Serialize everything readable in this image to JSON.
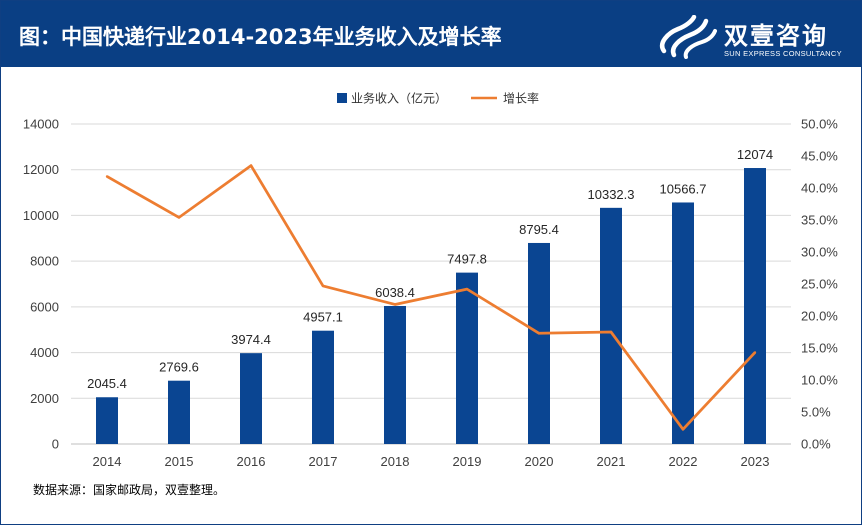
{
  "header": {
    "title": "图：中国快递行业2014-2023年业务收入及增长率",
    "logo_cn": "双壹咨询",
    "logo_en": "SUN EXPRESS CONSULTANCY"
  },
  "source": "数据来源：国家邮政局，双壹整理。",
  "colors": {
    "header_bg": "#0a3f84",
    "bar": "#0a4592",
    "line": "#ed7d31"
  },
  "chart_data": {
    "type": "bar",
    "title": "",
    "categories": [
      "2014",
      "2015",
      "2016",
      "2017",
      "2018",
      "2019",
      "2020",
      "2021",
      "2022",
      "2023"
    ],
    "series": [
      {
        "name": "业务收入（亿元）",
        "kind": "bar",
        "axis": "left",
        "values": [
          2045.4,
          2769.6,
          3974.4,
          4957.1,
          6038.4,
          7497.8,
          8795.4,
          10332.3,
          10566.7,
          12074
        ],
        "labels": [
          "2045.4",
          "2769.6",
          "3974.4",
          "4957.1",
          "6038.4",
          "7497.8",
          "8795.4",
          "10332.3",
          "10566.7",
          "12074"
        ]
      },
      {
        "name": "增长率",
        "kind": "line",
        "axis": "right",
        "values": [
          41.8,
          35.4,
          43.5,
          24.7,
          21.8,
          24.2,
          17.3,
          17.5,
          2.3,
          14.3
        ]
      }
    ],
    "ylim_left": [
      0,
      14000
    ],
    "yticks_left": [
      "0",
      "2000",
      "4000",
      "6000",
      "8000",
      "10000",
      "12000",
      "14000"
    ],
    "ylim_right": [
      0,
      50
    ],
    "yticks_right": [
      "0.0%",
      "5.0%",
      "10.0%",
      "15.0%",
      "20.0%",
      "25.0%",
      "30.0%",
      "35.0%",
      "40.0%",
      "45.0%",
      "50.0%"
    ],
    "grid": true,
    "legend": "top-center"
  }
}
